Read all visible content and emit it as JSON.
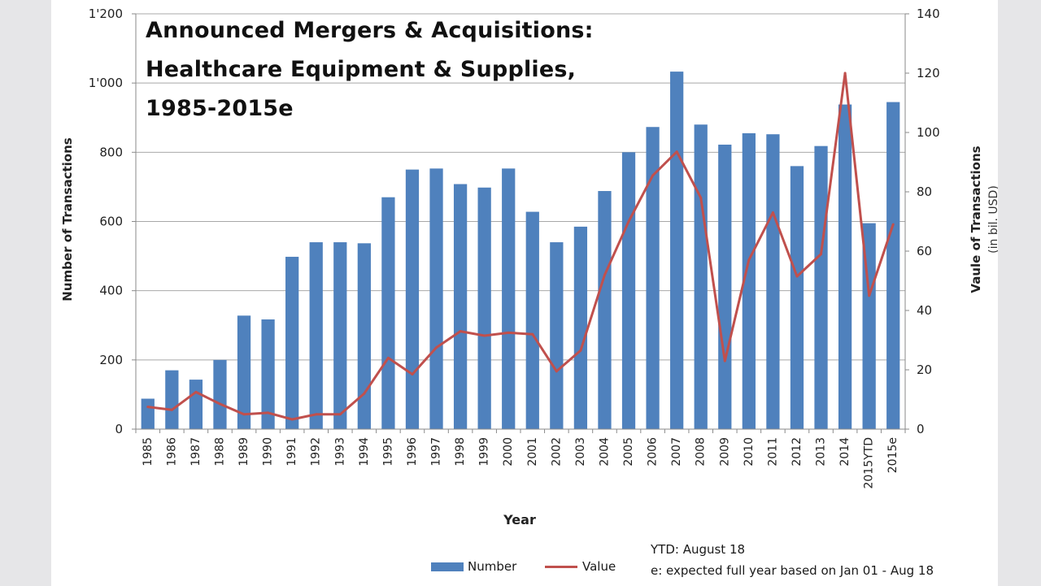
{
  "chart_data": {
    "type": "bar+line",
    "title_lines": [
      "Announced Mergers & Acquisitions:",
      "Healthcare Equipment & Supplies,",
      "1985-2015e"
    ],
    "xlabel": "Year",
    "ylabel_left": "Number of Transactions",
    "ylabel_right": "Vaule of Transactions",
    "ylabel_right_sub": "(in bil. USD)",
    "ylim_left": [
      0,
      1200
    ],
    "ylim_right": [
      0,
      140
    ],
    "yticks_left": [
      "0",
      "200",
      "400",
      "600",
      "800",
      "1'000",
      "1'200"
    ],
    "yticks_left_values": [
      0,
      200,
      400,
      600,
      800,
      1000,
      1200
    ],
    "yticks_right": [
      "0",
      "20",
      "40",
      "60",
      "80",
      "100",
      "120",
      "140"
    ],
    "yticks_right_values": [
      0,
      20,
      40,
      60,
      80,
      100,
      120,
      140
    ],
    "grid": "horizontal",
    "legend_position": "bottom",
    "categories": [
      "1985",
      "1986",
      "1987",
      "1988",
      "1989",
      "1990",
      "1991",
      "1992",
      "1993",
      "1994",
      "1995",
      "1996",
      "1997",
      "1998",
      "1999",
      "2000",
      "2001",
      "2002",
      "2003",
      "2004",
      "2005",
      "2006",
      "2007",
      "2008",
      "2009",
      "2010",
      "2011",
      "2012",
      "2013",
      "2014",
      "2015YTD",
      "2015e"
    ],
    "series": [
      {
        "name": "Number",
        "type": "bar",
        "axis": "left",
        "color": "#4f81bd",
        "values": [
          88,
          170,
          143,
          200,
          328,
          317,
          498,
          540,
          540,
          537,
          670,
          750,
          753,
          708,
          698,
          753,
          628,
          540,
          585,
          688,
          800,
          873,
          1033,
          880,
          822,
          855,
          852,
          760,
          818,
          938,
          595,
          945
        ]
      },
      {
        "name": "Value",
        "type": "line",
        "axis": "right",
        "color": "#c0504d",
        "values": [
          7.5,
          6.5,
          12.5,
          8.5,
          5,
          5.5,
          3.3,
          5,
          5,
          12,
          24,
          18.5,
          27.5,
          33,
          31.5,
          32.5,
          32,
          19.5,
          26.5,
          52,
          70,
          85.5,
          93.5,
          78,
          23,
          57,
          73,
          51.5,
          59,
          120,
          45,
          69
        ]
      }
    ],
    "notes": [
      "YTD: August 18",
      "e: expected full year based on Jan 01 - Aug 18"
    ]
  }
}
